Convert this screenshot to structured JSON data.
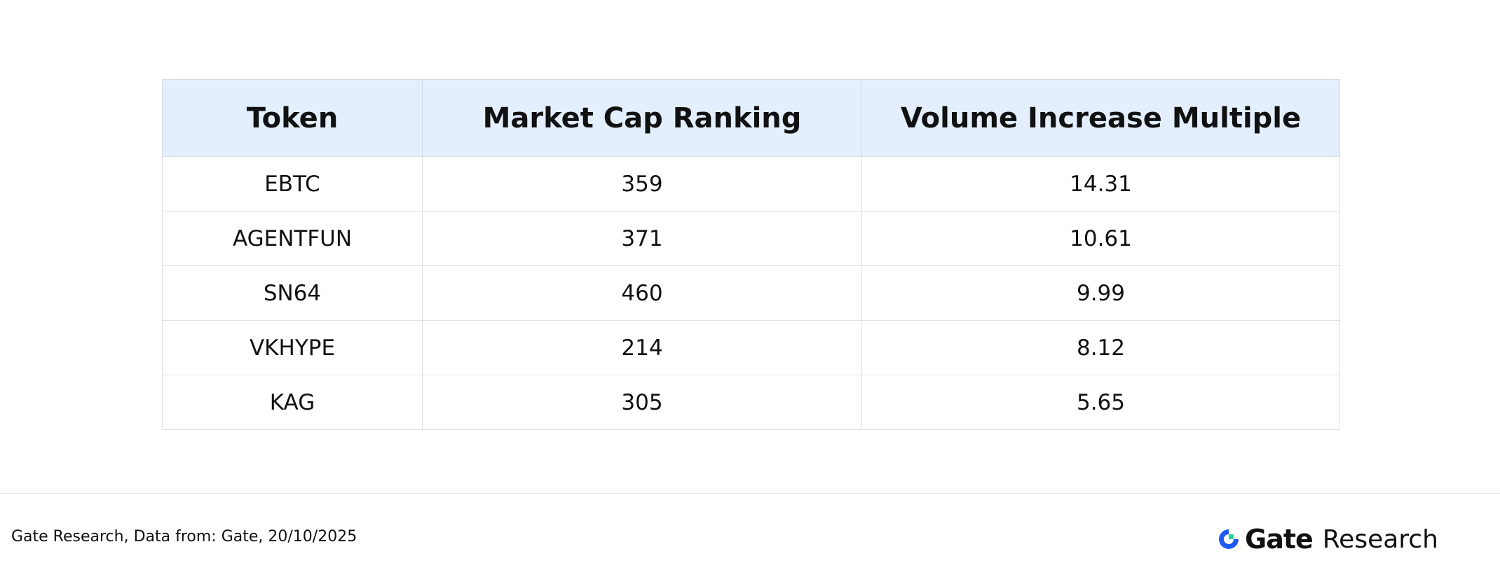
{
  "table": {
    "columns": [
      "Token",
      "Market Cap Ranking",
      "Volume Increase Multiple"
    ],
    "rows": [
      [
        "EBTC",
        359,
        14.31
      ],
      [
        "AGENTFUN",
        371,
        10.61
      ],
      [
        "SN64",
        460,
        9.99
      ],
      [
        "VKHYPE",
        214,
        8.12
      ],
      [
        "KAG",
        305,
        5.65
      ]
    ]
  },
  "footer": {
    "source": "Gate Research, Data from: Gate, 20/10/2025",
    "logo_brand": "Gate",
    "logo_suffix": "Research"
  }
}
